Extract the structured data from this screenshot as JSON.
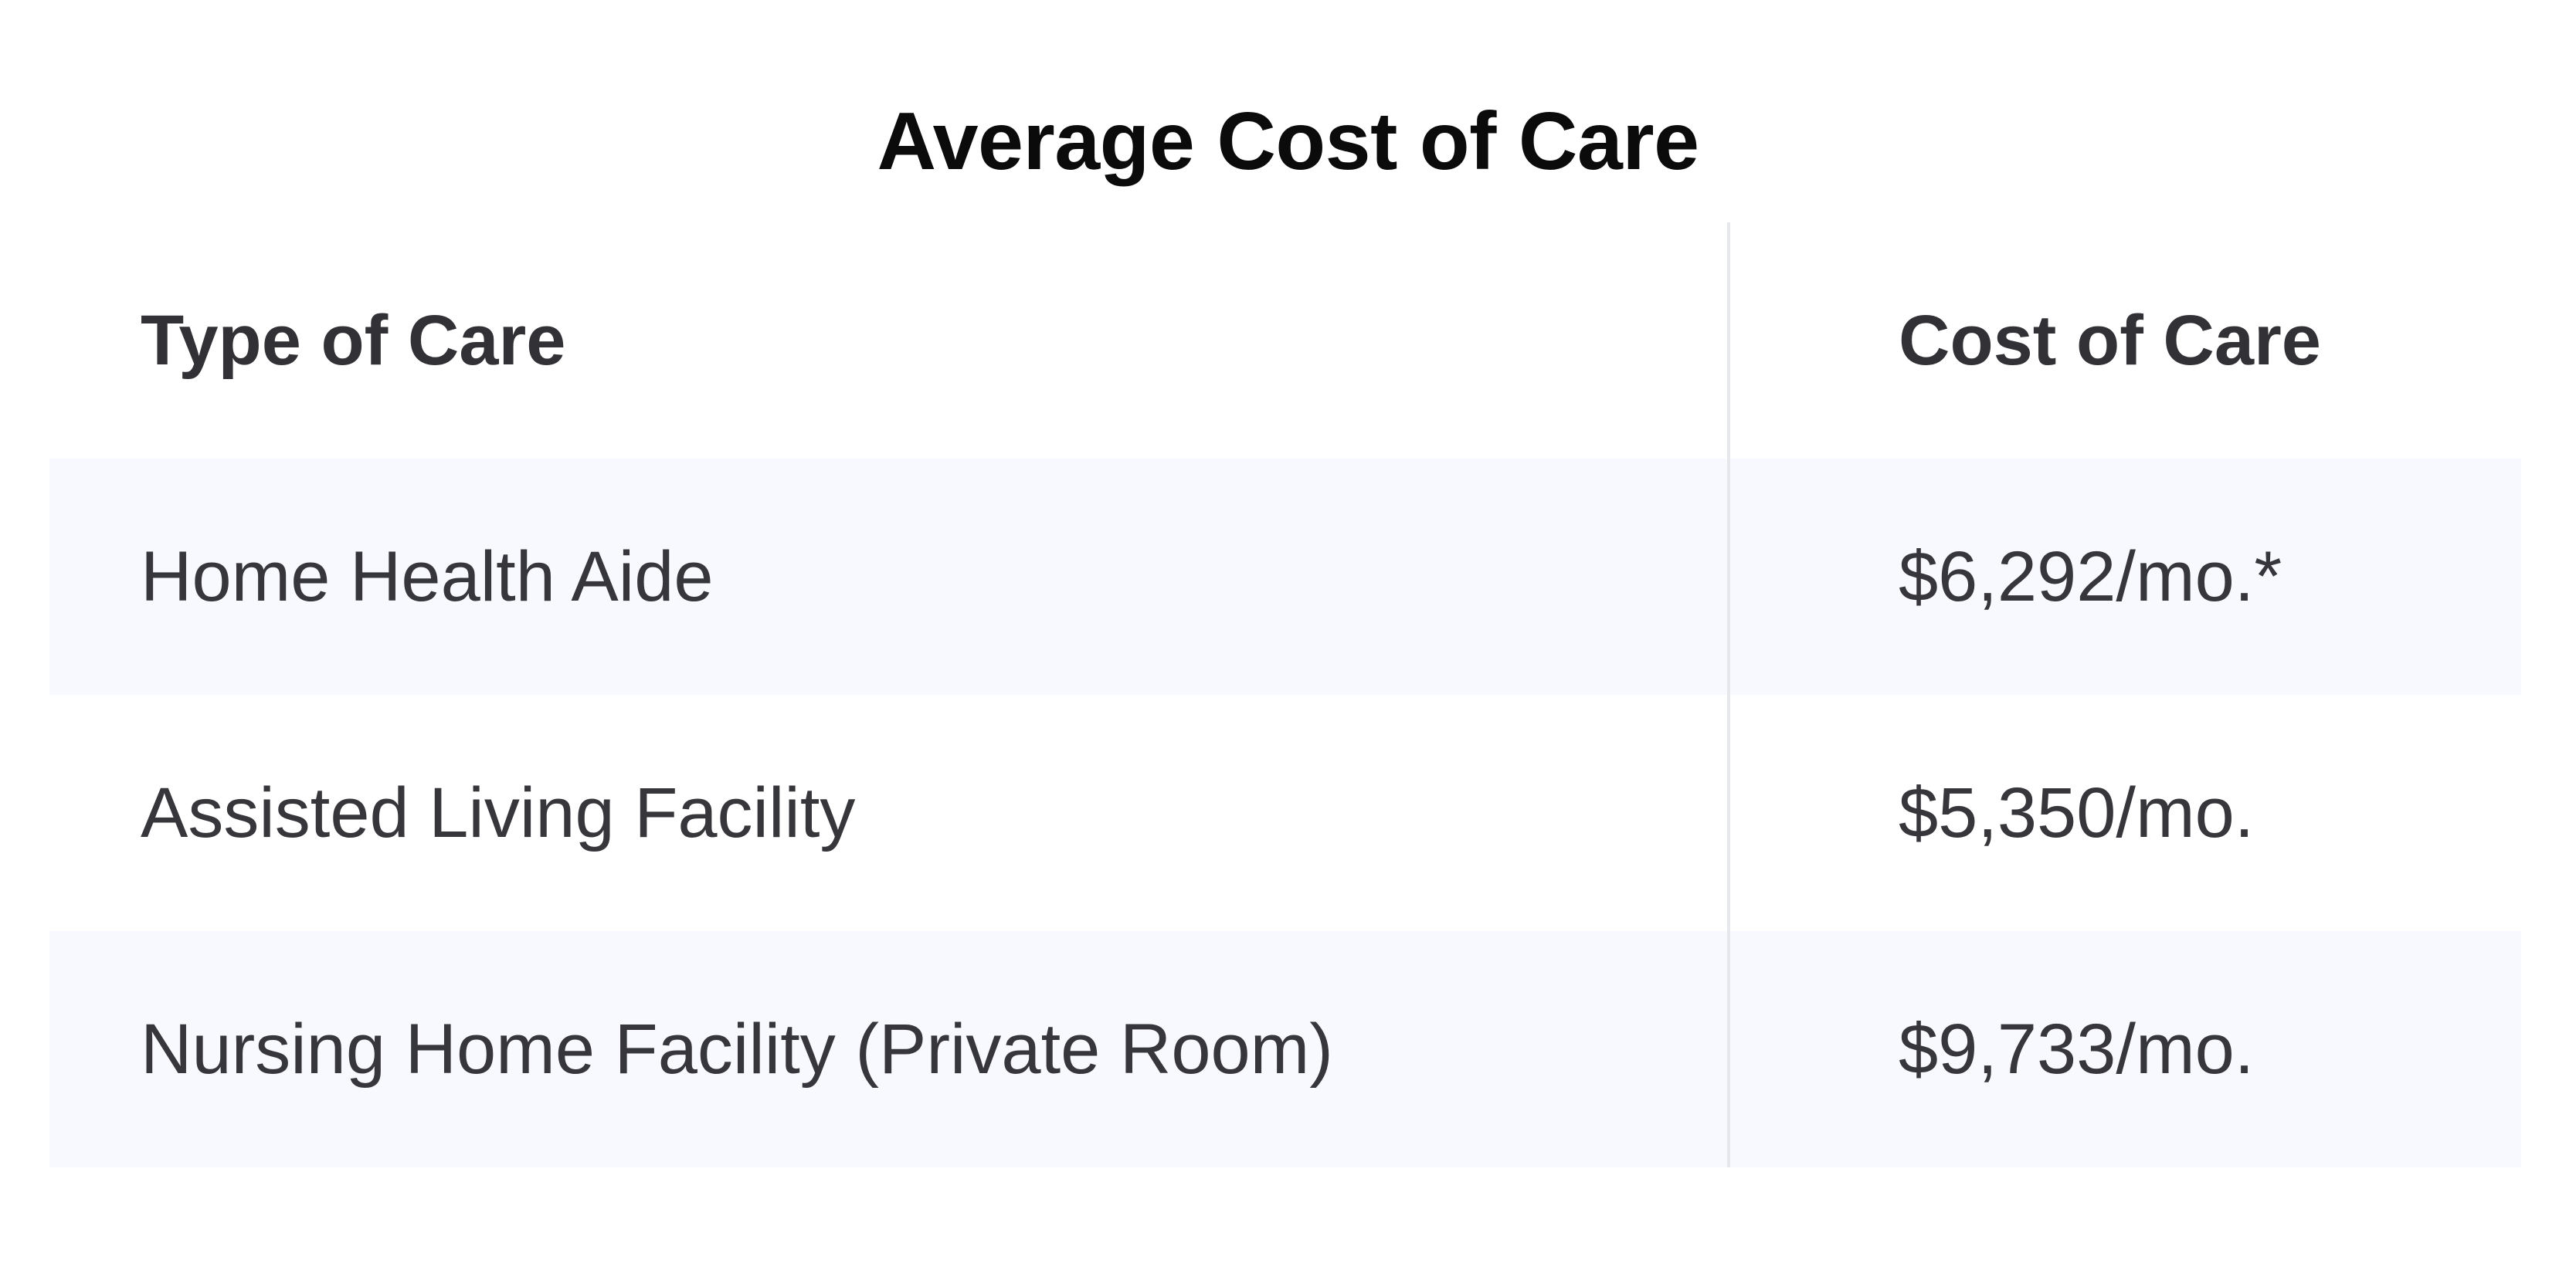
{
  "title": "Average Cost of Care",
  "table": {
    "headers": [
      "Type of Care",
      "Cost of Care"
    ],
    "rows": [
      {
        "type": "Home Health Aide",
        "cost": "$6,292/mo.*"
      },
      {
        "type": "Assisted Living Facility",
        "cost": "$5,350/mo."
      },
      {
        "type": "Nursing Home Facility (Private Room)",
        "cost": "$9,733/mo."
      }
    ]
  },
  "colors": {
    "title": "#0b0b0b",
    "text": "#36363b",
    "stripe": "#f8f9ff",
    "divider": "#e6e7ea"
  }
}
